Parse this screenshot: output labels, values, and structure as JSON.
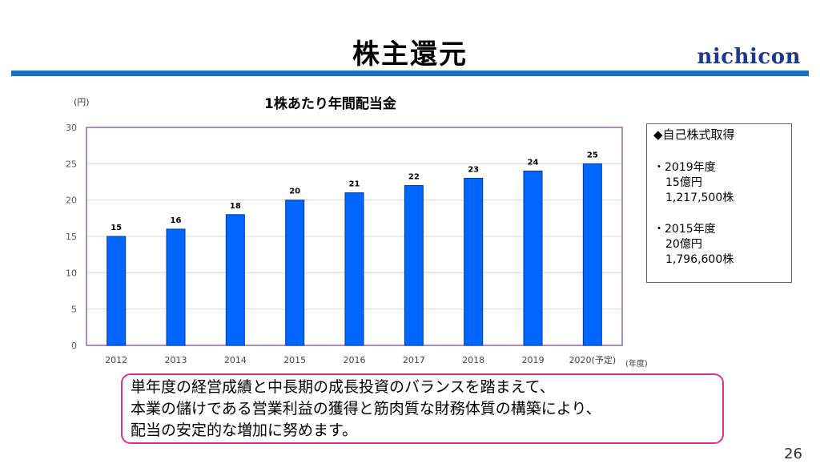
{
  "header": {
    "title": "株主還元",
    "logo": "nichicon"
  },
  "chart": {
    "title": "1株あたり年間配当金",
    "y_unit": "(円)",
    "x_unit": "(年度)",
    "bar_color": "#0066ff"
  },
  "chart_data": {
    "type": "bar",
    "title": "1株あたり年間配当金",
    "categories": [
      "2012",
      "2013",
      "2014",
      "2015",
      "2016",
      "2017",
      "2018",
      "2019",
      "2020(予定)"
    ],
    "values": [
      15,
      16,
      18,
      20,
      21,
      22,
      23,
      24,
      25
    ],
    "ylim": [
      0,
      30
    ],
    "yticks": [
      0,
      5,
      10,
      15,
      20,
      25,
      30
    ],
    "ylabel": "(円)",
    "xlabel": "(年度)",
    "grid": true
  },
  "info_box": {
    "title": "◆自己株式取得",
    "entries": [
      {
        "year": "・2019年度",
        "amount": "15億円",
        "shares": "1,217,500株"
      },
      {
        "year": "・2015年度",
        "amount": "20億円",
        "shares": "1,796,600株"
      }
    ]
  },
  "note": {
    "lines": [
      "単年度の経営成績と中長期の成長投資のバランスを踏まえて、",
      "本業の儲けである営業利益の獲得と筋肉質な財務体質の構築により、",
      "配当の安定的な増加に努めます。"
    ]
  },
  "page_number": "26"
}
